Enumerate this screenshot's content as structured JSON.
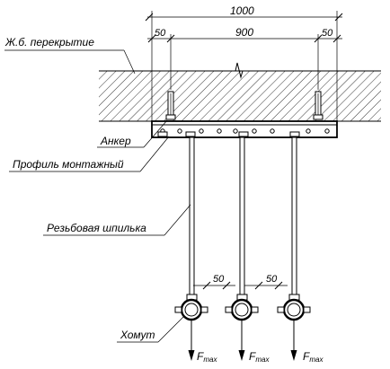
{
  "labels": {
    "slab": "Ж.б. перекрытие",
    "anchor": "Анкер",
    "profile": "Профиль монтажный",
    "rod": "Резьбовая шпилька",
    "clamp": "Хомут"
  },
  "dimensions": {
    "total": "1000",
    "inner": "900",
    "edge_left": "50",
    "edge_right": "50",
    "clamp_offset_1": "50",
    "clamp_offset_2": "50"
  },
  "load": {
    "symbol": "F",
    "subscript": "max"
  },
  "colors": {
    "line": "#000000",
    "background": "#ffffff"
  }
}
